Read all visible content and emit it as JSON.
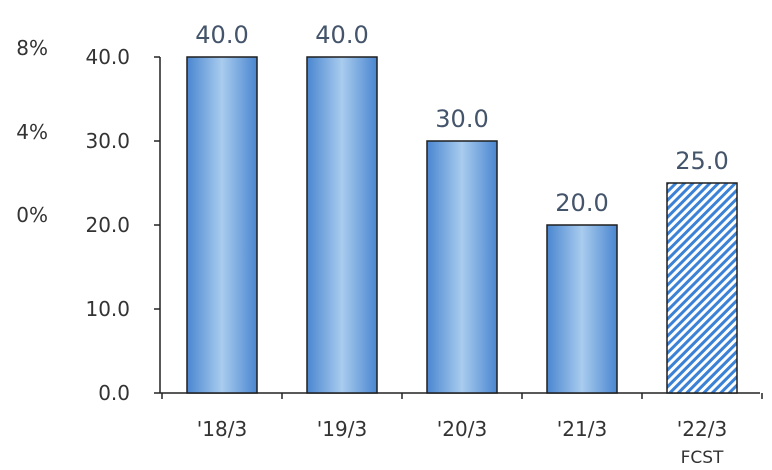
{
  "chart_data": {
    "type": "bar",
    "categories": [
      "'18/3",
      "'19/3",
      "'20/3",
      "'21/3",
      "'22/3"
    ],
    "category_sublabels": [
      "",
      "",
      "",
      "",
      "FCST"
    ],
    "values": [
      40.0,
      40.0,
      30.0,
      20.0,
      25.0
    ],
    "data_labels": [
      "40.0",
      "40.0",
      "30.0",
      "20.0",
      "25.0"
    ],
    "forecast": [
      false,
      false,
      false,
      false,
      true
    ],
    "ylim": [
      0,
      40
    ],
    "yticks": [
      "0.0",
      "10.0",
      "20.0",
      "30.0",
      "40.0"
    ],
    "secondary_axis_labels": [
      "8%",
      "4%",
      "0%"
    ],
    "title": "",
    "xlabel": "",
    "ylabel": "",
    "colors": {
      "bar_edge": "#1f1f1f",
      "bar_dark": "#4a86d0",
      "bar_light": "#a9ccee",
      "hatch_blue": "#3b82d6",
      "label": "#44546a",
      "axis": "#222222"
    }
  }
}
